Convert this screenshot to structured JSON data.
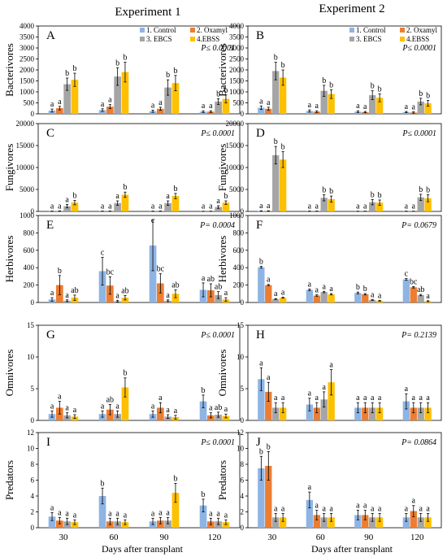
{
  "figure": {
    "column_titles": [
      "Experiment 1",
      "Experiment 2"
    ],
    "xlabel": "Days after transplant",
    "categories": [
      "30",
      "60",
      "90",
      "120"
    ],
    "legend": [
      "1. Control",
      "2. Oxamyl",
      "3. EBCS",
      "4.EBSS"
    ],
    "colors": {
      "control": "#8EB4E3",
      "oxamyl": "#ED7D31",
      "ebcs": "#A5A5A5",
      "ebss": "#FFC000"
    }
  },
  "chart_data": [
    {
      "type": "bar",
      "panel": "A",
      "ylabel": "Bacterivores",
      "ylim": [
        0,
        4000
      ],
      "yticks": [
        0,
        500,
        1000,
        1500,
        2000,
        2500,
        3000,
        3500,
        4000
      ],
      "pvalue": "P≤ 0.0001",
      "categories": [
        "30",
        "60",
        "90",
        "120"
      ],
      "series": [
        {
          "name": "1. Control",
          "values": [
            150,
            170,
            120,
            100
          ],
          "err": [
            70,
            60,
            50,
            40
          ],
          "letters": [
            "a",
            "a",
            "a",
            "a"
          ]
        },
        {
          "name": "2. Oxamyl",
          "values": [
            260,
            330,
            230,
            100
          ],
          "err": [
            80,
            90,
            70,
            40
          ],
          "letters": [
            "a",
            "a",
            "a",
            "a"
          ]
        },
        {
          "name": "3. EBCS",
          "values": [
            1350,
            1700,
            1200,
            560
          ],
          "err": [
            280,
            400,
            350,
            130
          ],
          "letters": [
            "b",
            "b",
            "b",
            "b"
          ]
        },
        {
          "name": "4.EBSS",
          "values": [
            1550,
            1900,
            1400,
            680
          ],
          "err": [
            300,
            450,
            350,
            180
          ],
          "letters": [
            "b",
            "b",
            "b",
            "b"
          ]
        }
      ]
    },
    {
      "type": "bar",
      "panel": "B",
      "ylabel": "Bacterivores",
      "ylim": [
        0,
        4000
      ],
      "yticks": [
        0,
        500,
        1000,
        1500,
        2000,
        2500,
        3000,
        3500,
        4000
      ],
      "pvalue": "P≤ 0.0001",
      "categories": [
        "30",
        "60",
        "90",
        "120"
      ],
      "series": [
        {
          "name": "1. Control",
          "values": [
            280,
            130,
            100,
            80
          ],
          "err": [
            80,
            50,
            40,
            30
          ],
          "letters": [
            "a",
            "a",
            "a",
            "a"
          ]
        },
        {
          "name": "2. Oxamyl",
          "values": [
            230,
            100,
            80,
            60
          ],
          "err": [
            70,
            40,
            30,
            30
          ],
          "letters": [
            "a",
            "a",
            "a",
            "a"
          ]
        },
        {
          "name": "3. EBCS",
          "values": [
            1950,
            1050,
            850,
            560
          ],
          "err": [
            400,
            250,
            200,
            150
          ],
          "letters": [
            "b",
            "b",
            "b",
            "b"
          ]
        },
        {
          "name": "4.EBSS",
          "values": [
            1650,
            900,
            730,
            480
          ],
          "err": [
            350,
            200,
            180,
            130
          ],
          "letters": [
            "b",
            "b",
            "b",
            "b"
          ]
        }
      ]
    },
    {
      "type": "bar",
      "panel": "C",
      "ylabel": "Fungivores",
      "ylim": [
        0,
        20000
      ],
      "yticks": [
        0,
        5000,
        10000,
        15000,
        20000
      ],
      "pvalue": "P≤ 0.0001",
      "categories": [
        "30",
        "60",
        "90",
        "120"
      ],
      "series": [
        {
          "name": "1. Control",
          "values": [
            50,
            50,
            50,
            30
          ],
          "err": [
            30,
            30,
            30,
            20
          ],
          "letters": [
            "a",
            "a",
            "a",
            "a"
          ]
        },
        {
          "name": "2. Oxamyl",
          "values": [
            80,
            60,
            60,
            40
          ],
          "err": [
            40,
            30,
            30,
            20
          ],
          "letters": [
            "a",
            "a",
            "a",
            "a"
          ]
        },
        {
          "name": "3. EBCS",
          "values": [
            1200,
            1900,
            1900,
            1000
          ],
          "err": [
            400,
            500,
            500,
            300
          ],
          "letters": [
            "a",
            "a",
            "a",
            "a"
          ]
        },
        {
          "name": "4.EBSS",
          "values": [
            2000,
            3800,
            3500,
            2000
          ],
          "err": [
            500,
            600,
            600,
            400
          ],
          "letters": [
            "b",
            "b",
            "b",
            "b"
          ]
        }
      ]
    },
    {
      "type": "bar",
      "panel": "D",
      "ylabel": "Fungivores",
      "ylim": [
        0,
        20000
      ],
      "yticks": [
        0,
        5000,
        10000,
        15000,
        20000
      ],
      "pvalue": "P≤ 0.0001",
      "categories": [
        "30",
        "60",
        "90",
        "120"
      ],
      "series": [
        {
          "name": "1. Control",
          "values": [
            100,
            60,
            40,
            50
          ],
          "err": [
            40,
            30,
            20,
            20
          ],
          "letters": [
            "a",
            "a",
            "a",
            "a"
          ]
        },
        {
          "name": "2. Oxamyl",
          "values": [
            100,
            50,
            40,
            40
          ],
          "err": [
            40,
            30,
            20,
            20
          ],
          "letters": [
            "a",
            "a",
            "a",
            "a"
          ]
        },
        {
          "name": "3. EBCS",
          "values": [
            12800,
            3100,
            2100,
            3200
          ],
          "err": [
            2000,
            700,
            600,
            700
          ],
          "letters": [
            "b",
            "b",
            "b",
            "b"
          ]
        },
        {
          "name": "4.EBSS",
          "values": [
            11800,
            2800,
            2000,
            3000
          ],
          "err": [
            1800,
            700,
            600,
            800
          ],
          "letters": [
            "b",
            "b",
            "b",
            "b"
          ]
        }
      ]
    },
    {
      "type": "bar",
      "panel": "E",
      "ylabel": "Herbivores",
      "ylim": [
        0,
        1000
      ],
      "yticks": [
        0,
        200,
        400,
        600,
        800,
        1000
      ],
      "pvalue": "P= 0.0004",
      "categories": [
        "30",
        "60",
        "90",
        "120"
      ],
      "series": [
        {
          "name": "1. Control",
          "values": [
            35,
            360,
            655,
            145
          ],
          "err": [
            20,
            160,
            290,
            80
          ],
          "letters": [
            "a",
            "c",
            "c",
            "a"
          ]
        },
        {
          "name": "2. Oxamyl",
          "values": [
            200,
            195,
            220,
            140
          ],
          "err": [
            110,
            100,
            110,
            75
          ],
          "letters": [
            "b",
            "bc",
            "bc",
            "ab"
          ]
        },
        {
          "name": "3. EBCS",
          "values": [
            20,
            15,
            20,
            85
          ],
          "err": [
            10,
            10,
            10,
            40
          ],
          "letters": [
            "a",
            "a",
            "a",
            "ab"
          ]
        },
        {
          "name": "4.EBSS",
          "values": [
            55,
            55,
            100,
            35
          ],
          "err": [
            30,
            25,
            45,
            20
          ],
          "letters": [
            "ab",
            "ab",
            "ab",
            "a"
          ]
        }
      ]
    },
    {
      "type": "bar",
      "panel": "F",
      "ylabel": "Herbivores",
      "ylim": [
        0,
        1000
      ],
      "yticks": [
        0,
        200,
        400,
        600,
        800,
        1000
      ],
      "pvalue": "P= 0.0679",
      "categories": [
        "30",
        "60",
        "90",
        "120"
      ],
      "series": [
        {
          "name": "1. Control",
          "values": [
            405,
            145,
            110,
            265
          ],
          "err": [
            10,
            10,
            10,
            10
          ],
          "letters": [
            "b",
            "a",
            "b",
            "c"
          ]
        },
        {
          "name": "2. Oxamyl",
          "values": [
            200,
            80,
            95,
            175
          ],
          "err": [
            8,
            8,
            8,
            8
          ],
          "letters": [
            "a",
            "a",
            "b",
            "bc"
          ]
        },
        {
          "name": "3. EBCS",
          "values": [
            40,
            120,
            30,
            85
          ],
          "err": [
            5,
            8,
            5,
            8
          ],
          "letters": [
            "a",
            "a",
            "a",
            "ab"
          ]
        },
        {
          "name": "4.EBSS",
          "values": [
            55,
            95,
            20,
            15
          ],
          "err": [
            6,
            8,
            5,
            5
          ],
          "letters": [
            "a",
            "a",
            "a",
            "a"
          ]
        }
      ]
    },
    {
      "type": "bar",
      "panel": "G",
      "ylabel": "Omnivores",
      "ylim": [
        0,
        15
      ],
      "yticks": [
        0,
        5,
        10,
        15
      ],
      "pvalue": "P≤ 0.0001",
      "categories": [
        "30",
        "60",
        "90",
        "120"
      ],
      "series": [
        {
          "name": "1. Control",
          "values": [
            1.0,
            1.0,
            1.0,
            3.0
          ],
          "err": [
            0.5,
            0.5,
            0.5,
            1.0
          ],
          "letters": [
            "a",
            "a",
            "a",
            "b"
          ]
        },
        {
          "name": "2. Oxamyl",
          "values": [
            2.0,
            1.7,
            2.0,
            0.8
          ],
          "err": [
            1.0,
            0.8,
            0.8,
            0.4
          ],
          "letters": [
            "a",
            "ab",
            "a",
            "a"
          ]
        },
        {
          "name": "3. EBCS",
          "values": [
            0.8,
            1.0,
            0.6,
            0.9
          ],
          "err": [
            0.4,
            0.5,
            0.3,
            0.4
          ],
          "letters": [
            "a",
            "a",
            "a",
            "ab"
          ]
        },
        {
          "name": "4.EBSS",
          "values": [
            0.6,
            5.2,
            0.5,
            0.7
          ],
          "err": [
            0.3,
            1.5,
            0.3,
            0.3
          ],
          "letters": [
            "a",
            "b",
            "a",
            "a"
          ]
        }
      ]
    },
    {
      "type": "bar",
      "panel": "H",
      "ylabel": "Omnivores",
      "ylim": [
        0,
        15
      ],
      "yticks": [
        0,
        5,
        10,
        15
      ],
      "pvalue": "P= 0.2139",
      "categories": [
        "30",
        "60",
        "90",
        "120"
      ],
      "series": [
        {
          "name": "1. Control",
          "values": [
            6.5,
            2.5,
            2.0,
            3.0
          ],
          "err": [
            1.8,
            1.0,
            0.8,
            1.2
          ],
          "letters": [
            "a",
            "a",
            "a",
            "a"
          ]
        },
        {
          "name": "2. Oxamyl",
          "values": [
            4.5,
            2.0,
            2.0,
            2.0
          ],
          "err": [
            1.5,
            0.8,
            0.8,
            0.8
          ],
          "letters": [
            "a",
            "a",
            "a",
            "a"
          ]
        },
        {
          "name": "3. EBCS",
          "values": [
            2.0,
            3.3,
            2.0,
            2.0
          ],
          "err": [
            0.8,
            1.2,
            0.8,
            0.8
          ],
          "letters": [
            "a",
            "a",
            "a",
            "a"
          ]
        },
        {
          "name": "4.EBSS",
          "values": [
            2.0,
            6.0,
            2.0,
            2.0
          ],
          "err": [
            0.8,
            2.0,
            0.8,
            0.8
          ],
          "letters": [
            "a",
            "a",
            "a",
            "a"
          ]
        }
      ]
    },
    {
      "type": "bar",
      "panel": "I",
      "ylabel": "Predators",
      "ylim": [
        0,
        12
      ],
      "yticks": [
        0,
        2,
        4,
        6,
        8,
        10,
        12
      ],
      "pvalue": "P≤ 0.0001",
      "categories": [
        "30",
        "60",
        "90",
        "120"
      ],
      "series": [
        {
          "name": "1. Control",
          "values": [
            1.4,
            4.0,
            0.8,
            2.8
          ],
          "err": [
            0.5,
            1.0,
            0.4,
            0.8
          ],
          "letters": [
            "a",
            "b",
            "a",
            "b"
          ]
        },
        {
          "name": "2. Oxamyl",
          "values": [
            0.9,
            0.8,
            0.9,
            0.8
          ],
          "err": [
            0.4,
            0.4,
            0.4,
            0.4
          ],
          "letters": [
            "a",
            "a",
            "a",
            "a"
          ]
        },
        {
          "name": "3. EBCS",
          "values": [
            0.8,
            0.8,
            0.9,
            0.8
          ],
          "err": [
            0.4,
            0.4,
            0.4,
            0.4
          ],
          "letters": [
            "a",
            "a",
            "a",
            "a"
          ]
        },
        {
          "name": "4.EBSS",
          "values": [
            0.7,
            0.7,
            4.4,
            0.7
          ],
          "err": [
            0.3,
            0.3,
            1.2,
            0.3
          ],
          "letters": [
            "a",
            "a",
            "b",
            "a"
          ]
        }
      ]
    },
    {
      "type": "bar",
      "panel": "J",
      "ylabel": "Predators",
      "ylim": [
        0,
        12
      ],
      "yticks": [
        0,
        2,
        4,
        6,
        8,
        10,
        12
      ],
      "pvalue": "P= 0.0864",
      "categories": [
        "30",
        "60",
        "90",
        "120"
      ],
      "series": [
        {
          "name": "1. Control",
          "values": [
            7.5,
            3.5,
            1.6,
            1.3
          ],
          "err": [
            1.5,
            1.0,
            0.6,
            0.5
          ],
          "letters": [
            "b",
            "a",
            "a",
            "a"
          ]
        },
        {
          "name": "2. Oxamyl",
          "values": [
            7.8,
            1.6,
            1.6,
            2.1
          ],
          "err": [
            1.8,
            0.6,
            0.6,
            0.7
          ],
          "letters": [
            "b",
            "a",
            "a",
            "a"
          ]
        },
        {
          "name": "3. EBCS",
          "values": [
            1.3,
            1.3,
            1.3,
            1.3
          ],
          "err": [
            0.5,
            0.5,
            0.5,
            0.5
          ],
          "letters": [
            "a",
            "a",
            "a",
            "a"
          ]
        },
        {
          "name": "4.EBSS",
          "values": [
            1.3,
            1.3,
            1.3,
            1.3
          ],
          "err": [
            0.5,
            0.5,
            0.5,
            0.5
          ],
          "letters": [
            "a",
            "a",
            "a",
            "a"
          ]
        }
      ]
    }
  ]
}
